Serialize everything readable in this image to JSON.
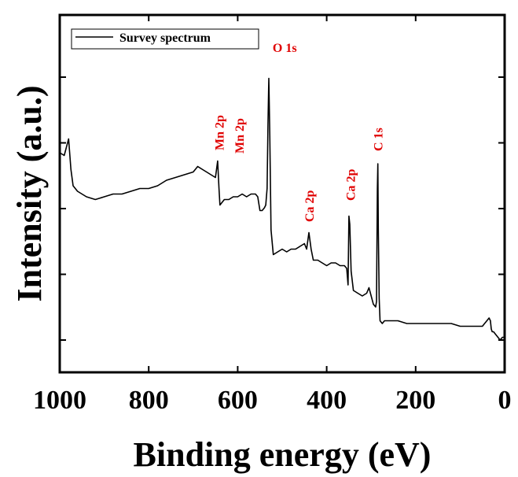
{
  "chart_data": {
    "type": "line",
    "title": "",
    "xlabel": "Binding energy (eV)",
    "ylabel": "Intensity (a.u.)",
    "xlim": [
      1000,
      0
    ],
    "x_reversed": true,
    "ylim": [
      0,
      100
    ],
    "y_ticks_labeled": false,
    "x_ticks": [
      1000,
      800,
      600,
      400,
      200,
      0
    ],
    "x_tick_labels": [
      "1000",
      "800",
      "600",
      "400",
      "200",
      "0"
    ],
    "grid": false,
    "legend": {
      "placement": "top-left",
      "entries": [
        "Survey spectrum"
      ]
    },
    "series": [
      {
        "name": "Survey spectrum",
        "color": "#000000",
        "x": [
          1000,
          990,
          985,
          980,
          975,
          970,
          960,
          940,
          920,
          900,
          880,
          860,
          840,
          820,
          800,
          780,
          760,
          740,
          720,
          700,
          690,
          680,
          670,
          660,
          650,
          645,
          642,
          640,
          635,
          630,
          620,
          610,
          600,
          590,
          580,
          570,
          560,
          555,
          550,
          545,
          540,
          537,
          534,
          532,
          530,
          528,
          525,
          520,
          510,
          500,
          490,
          480,
          470,
          460,
          450,
          445,
          440,
          435,
          430,
          420,
          410,
          400,
          390,
          380,
          370,
          360,
          355,
          352,
          350,
          348,
          345,
          340,
          330,
          320,
          310,
          305,
          300,
          295,
          290,
          288,
          286,
          285,
          284,
          282,
          280,
          275,
          270,
          260,
          240,
          220,
          200,
          180,
          160,
          140,
          120,
          100,
          80,
          60,
          50,
          45,
          40,
          35,
          32,
          30,
          28,
          25,
          20,
          15,
          10,
          5,
          0
        ],
        "y": [
          68,
          67,
          70,
          73,
          62,
          56,
          54,
          52,
          51,
          52,
          53,
          53,
          54,
          55,
          55,
          56,
          58,
          59,
          60,
          61,
          63,
          62,
          61,
          60,
          59,
          65,
          55,
          49,
          50,
          51,
          51,
          52,
          52,
          53,
          52,
          53,
          53,
          52,
          47,
          47,
          48,
          49,
          55,
          78,
          95,
          75,
          40,
          31,
          32,
          33,
          32,
          33,
          33,
          34,
          35,
          33,
          39,
          33,
          29,
          29,
          28,
          27,
          28,
          28,
          27,
          27,
          26,
          20,
          45,
          42,
          25,
          18,
          17,
          16,
          17,
          19,
          16,
          13,
          12,
          14,
          55,
          64,
          40,
          15,
          7,
          6,
          7,
          7,
          7,
          6,
          6,
          6,
          6,
          6,
          6,
          5,
          5,
          5,
          5,
          6,
          7,
          8,
          7,
          4,
          3,
          3,
          2,
          1,
          0,
          1,
          1
        ]
      }
    ],
    "annotations": [
      {
        "text": "O 1s",
        "x": 532,
        "color": "#e00000",
        "orientation": "horizontal"
      },
      {
        "text": "Mn 2p",
        "x": 642,
        "color": "#e00000",
        "orientation": "vertical"
      },
      {
        "text": "Mn 2p",
        "x": 597,
        "color": "#e00000",
        "orientation": "vertical"
      },
      {
        "text": "Ca 2p",
        "x": 440,
        "color": "#e00000",
        "orientation": "vertical"
      },
      {
        "text": "Ca 2p",
        "x": 347,
        "color": "#e00000",
        "orientation": "vertical"
      },
      {
        "text": "C 1s",
        "x": 285,
        "color": "#e00000",
        "orientation": "vertical"
      }
    ]
  }
}
